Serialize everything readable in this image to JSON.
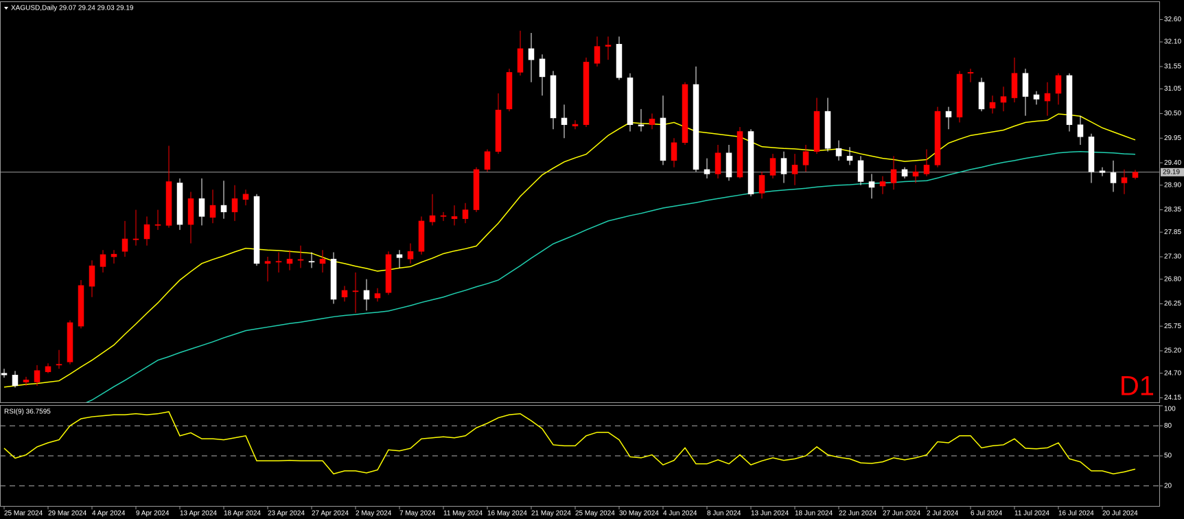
{
  "chart_data": {
    "type": "candlestick",
    "title": "XAGUSD,Daily 29.07 29.24 29.03 29.19",
    "watermark": "D1",
    "categories": [
      "25 Mar 2024",
      null,
      null,
      null,
      "29 Mar 2024",
      null,
      null,
      null,
      "4 Apr 2024",
      null,
      null,
      null,
      "9 Apr 2024",
      null,
      null,
      null,
      "13 Apr 2024",
      null,
      null,
      null,
      "18 Apr 2024",
      null,
      null,
      null,
      "23 Apr 2024",
      null,
      null,
      null,
      "27 Apr 2024",
      null,
      null,
      null,
      "2 May 2024",
      null,
      null,
      null,
      "7 May 2024",
      null,
      null,
      null,
      "11 May 2024",
      null,
      null,
      null,
      "16 May 2024",
      null,
      null,
      null,
      "21 May 2024",
      null,
      null,
      null,
      "25 May 2024",
      null,
      null,
      null,
      "30 May 2024",
      null,
      null,
      null,
      "4 Jun 2024",
      null,
      null,
      null,
      "8 Jun 2024",
      null,
      null,
      null,
      "13 Jun 2024",
      null,
      null,
      null,
      "18 Jun 2024",
      null,
      null,
      null,
      "22 Jun 2024",
      null,
      null,
      null,
      "27 Jun 2024",
      null,
      null,
      null,
      "2 Jul 2024",
      null,
      null,
      null,
      "6 Jul 2024",
      null,
      null,
      null,
      "11 Jul 2024",
      null,
      null,
      null,
      "16 Jul 2024",
      null,
      null,
      null,
      "20 Jul 2024",
      null,
      null,
      null
    ],
    "open": [
      24.7,
      24.66,
      24.5,
      24.5,
      24.73,
      24.88,
      24.95,
      25.75,
      26.64,
      27.08,
      27.3,
      27.42,
      27.68,
      27.7,
      28.0,
      28.0,
      28.95,
      28.02,
      28.6,
      28.18,
      28.45,
      28.3,
      28.58,
      28.65,
      27.15,
      27.18,
      27.15,
      27.22,
      27.2,
      27.15,
      27.25,
      26.4,
      26.52,
      26.55,
      26.38,
      26.5,
      27.35,
      27.25,
      27.42,
      28.08,
      28.2,
      28.15,
      28.15,
      28.35,
      29.25,
      29.65,
      30.6,
      31.42,
      31.95,
      31.72,
      31.35,
      30.4,
      30.22,
      30.25,
      31.62,
      32.0,
      32.05,
      31.3,
      30.25,
      30.25,
      30.4,
      29.45,
      29.85,
      31.15,
      29.25,
      29.15,
      29.62,
      29.08,
      30.1,
      28.72,
      29.12,
      29.5,
      29.15,
      29.35,
      29.65,
      30.55,
      29.72,
      29.55,
      29.45,
      28.98,
      28.88,
      28.95,
      29.25,
      29.1,
      29.15,
      29.35,
      30.55,
      30.42,
      31.4,
      31.2,
      30.62,
      30.75,
      30.85,
      31.4,
      30.92,
      30.78,
      30.95,
      31.35,
      30.25,
      29.98,
      29.22,
      29.18,
      28.95,
      29.07
    ],
    "high": [
      24.8,
      24.75,
      24.62,
      24.88,
      24.92,
      25.22,
      25.88,
      26.78,
      27.22,
      27.45,
      27.45,
      28.1,
      28.35,
      28.2,
      28.35,
      29.78,
      29.05,
      28.75,
      29.05,
      28.8,
      29.0,
      28.9,
      28.8,
      28.7,
      27.3,
      27.4,
      27.45,
      27.55,
      27.4,
      27.45,
      27.4,
      26.65,
      26.95,
      26.8,
      26.6,
      27.42,
      27.45,
      27.6,
      28.2,
      28.7,
      28.3,
      28.45,
      28.5,
      29.3,
      29.7,
      30.95,
      31.5,
      32.35,
      32.3,
      31.82,
      31.45,
      30.7,
      30.35,
      31.75,
      32.22,
      32.22,
      32.22,
      31.4,
      30.6,
      30.5,
      30.9,
      29.95,
      31.2,
      31.55,
      29.5,
      29.8,
      29.8,
      30.2,
      30.15,
      29.2,
      29.6,
      29.65,
      29.6,
      29.8,
      30.85,
      30.85,
      29.9,
      29.75,
      29.55,
      29.15,
      29.1,
      29.55,
      29.3,
      29.35,
      29.7,
      30.65,
      30.65,
      31.45,
      31.5,
      31.3,
      30.9,
      31.1,
      31.75,
      31.5,
      31.0,
      31.2,
      31.4,
      31.4,
      30.45,
      30.05,
      29.3,
      29.45,
      29.25,
      29.24
    ],
    "low": [
      24.6,
      24.38,
      24.42,
      24.42,
      24.7,
      24.8,
      24.9,
      25.7,
      26.4,
      26.95,
      27.15,
      27.3,
      27.55,
      27.55,
      27.9,
      27.95,
      27.9,
      27.6,
      28.0,
      28.05,
      28.15,
      28.1,
      28.45,
      27.1,
      26.75,
      26.95,
      27.0,
      27.05,
      27.05,
      26.95,
      26.25,
      26.3,
      26.05,
      26.1,
      26.3,
      26.45,
      27.05,
      27.15,
      27.35,
      28.0,
      28.1,
      28.0,
      28.05,
      28.3,
      29.2,
      29.6,
      30.55,
      31.35,
      31.2,
      30.9,
      30.15,
      29.95,
      30.15,
      30.2,
      31.55,
      31.7,
      31.25,
      30.1,
      30.1,
      30.15,
      29.35,
      29.3,
      29.8,
      29.2,
      29.05,
      29.05,
      29.0,
      29.05,
      28.65,
      28.6,
      29.05,
      28.95,
      28.9,
      29.2,
      29.6,
      29.65,
      29.45,
      29.35,
      28.9,
      28.6,
      28.7,
      28.8,
      29.05,
      28.95,
      29.1,
      29.3,
      30.15,
      30.3,
      31.2,
      30.55,
      30.5,
      30.55,
      30.75,
      30.45,
      30.7,
      30.45,
      30.7,
      30.1,
      29.8,
      28.95,
      29.1,
      28.75,
      28.7,
      29.03
    ],
    "close": [
      24.66,
      24.42,
      24.55,
      24.76,
      24.85,
      24.9,
      25.83,
      26.66,
      27.1,
      27.35,
      27.36,
      27.7,
      27.7,
      28.02,
      28.02,
      28.98,
      28.02,
      28.6,
      28.2,
      28.45,
      28.3,
      28.6,
      28.7,
      27.15,
      27.2,
      27.2,
      27.25,
      27.24,
      27.18,
      27.25,
      26.35,
      26.55,
      26.54,
      26.35,
      26.48,
      27.35,
      27.28,
      27.42,
      28.1,
      28.22,
      28.22,
      28.2,
      28.35,
      29.25,
      29.65,
      30.58,
      31.42,
      31.95,
      31.7,
      31.32,
      30.4,
      30.25,
      30.26,
      31.65,
      32.0,
      32.03,
      31.3,
      30.25,
      30.22,
      30.38,
      29.45,
      29.85,
      31.15,
      29.25,
      29.15,
      29.62,
      29.08,
      30.1,
      28.7,
      29.12,
      29.5,
      29.15,
      29.35,
      29.65,
      30.55,
      29.72,
      29.55,
      29.45,
      28.98,
      28.85,
      28.98,
      29.25,
      29.1,
      29.2,
      29.35,
      30.55,
      30.42,
      31.38,
      31.42,
      30.6,
      30.75,
      30.88,
      31.4,
      30.88,
      30.82,
      30.95,
      31.35,
      30.25,
      29.98,
      29.2,
      29.18,
      28.95,
      29.07,
      29.19
    ],
    "up_color": "#ff0000",
    "down_color": "#ffffff",
    "overlays": [
      {
        "color": "#ffff00",
        "values": [
          24.39,
          24.42,
          24.45,
          24.47,
          24.5,
          24.53,
          24.68,
          24.84,
          24.99,
          25.16,
          25.33,
          25.57,
          25.8,
          26.04,
          26.27,
          26.53,
          26.78,
          26.97,
          27.15,
          27.24,
          27.32,
          27.41,
          27.49,
          27.47,
          27.45,
          27.44,
          27.42,
          27.4,
          27.38,
          27.29,
          27.2,
          27.15,
          27.09,
          27.04,
          26.98,
          27.01,
          27.05,
          27.08,
          27.18,
          27.27,
          27.37,
          27.43,
          27.48,
          27.54,
          27.8,
          28.05,
          28.35,
          28.65,
          28.89,
          29.13,
          29.28,
          29.42,
          29.51,
          29.59,
          29.8,
          30.01,
          30.16,
          30.3,
          30.28,
          30.27,
          30.25,
          30.3,
          30.2,
          30.1,
          30.07,
          30.04,
          30.01,
          29.98,
          29.87,
          29.76,
          29.74,
          29.72,
          29.71,
          29.69,
          29.67,
          29.69,
          29.71,
          29.66,
          29.6,
          29.55,
          29.5,
          29.47,
          29.43,
          29.45,
          29.47,
          29.66,
          29.84,
          29.93,
          30.01,
          30.05,
          30.09,
          30.13,
          30.22,
          30.3,
          30.33,
          30.35,
          30.49,
          30.47,
          30.44,
          30.31,
          30.18,
          30.09,
          30.0,
          29.91
        ]
      },
      {
        "color": "#20d0b0",
        "values": [
          null,
          null,
          null,
          null,
          null,
          null,
          null,
          23.99,
          24.1,
          24.25,
          24.4,
          24.54,
          24.69,
          24.84,
          24.99,
          25.07,
          25.16,
          25.24,
          25.32,
          25.4,
          25.49,
          25.57,
          25.65,
          25.69,
          25.73,
          25.77,
          25.81,
          25.84,
          25.88,
          25.92,
          25.96,
          25.99,
          26.01,
          26.04,
          26.06,
          26.09,
          26.15,
          26.21,
          26.28,
          26.34,
          26.4,
          26.48,
          26.55,
          26.63,
          26.7,
          26.78,
          26.94,
          27.1,
          27.27,
          27.43,
          27.59,
          27.69,
          27.79,
          27.9,
          28.0,
          28.1,
          28.16,
          28.22,
          28.27,
          28.33,
          28.39,
          28.43,
          28.47,
          28.51,
          28.56,
          28.6,
          28.64,
          28.68,
          28.72,
          28.74,
          28.77,
          28.79,
          28.81,
          28.83,
          28.86,
          28.88,
          28.9,
          28.91,
          28.93,
          28.94,
          28.95,
          28.96,
          28.98,
          28.99,
          29.0,
          29.06,
          29.13,
          29.19,
          29.25,
          29.3,
          29.36,
          29.41,
          29.45,
          29.5,
          29.54,
          29.58,
          29.62,
          29.64,
          29.65,
          29.64,
          29.63,
          29.62,
          29.6,
          29.59
        ]
      }
    ],
    "last_price": 29.19,
    "ylim": [
      24.05,
      32.99
    ],
    "yticks": [
      {
        "value": 32.6,
        "label": "32.60"
      },
      {
        "value": 32.1,
        "label": "32.10"
      },
      31.55,
      31.05,
      {
        "value": 30.5,
        "label": "30.50"
      },
      29.95,
      {
        "value": 29.4,
        "label": "29.40"
      },
      {
        "value": 28.9,
        "label": "28.90"
      },
      28.35,
      27.85,
      {
        "value": 27.3,
        "label": "27.30"
      },
      {
        "value": 26.8,
        "label": "26.80"
      },
      26.25,
      25.75,
      {
        "value": 25.2,
        "label": "25.20"
      },
      {
        "value": 24.7,
        "label": "24.70"
      },
      24.15
    ],
    "grid": false,
    "indicator": {
      "title": "RSI(9) 36.7595",
      "color": "#ffff00",
      "ylim": [
        0,
        100
      ],
      "yticks": [
        100,
        80,
        50,
        20
      ],
      "values": [
        57.6,
        47.7,
        51,
        59,
        63,
        66,
        80,
        87,
        89,
        90,
        91,
        91,
        92,
        91,
        92,
        94,
        70,
        73,
        67,
        67,
        66,
        68,
        70,
        45,
        45,
        45,
        45.5,
        45,
        45,
        45,
        32,
        35,
        35,
        33,
        36,
        56,
        55,
        57.5,
        67,
        68,
        69,
        68,
        70,
        78,
        82.5,
        88,
        91,
        92,
        85,
        77,
        61,
        60,
        60,
        70,
        73.5,
        73.5,
        66,
        49,
        48,
        51,
        41,
        45.5,
        58,
        42,
        42,
        46,
        42,
        51,
        41,
        45,
        48,
        45.5,
        47,
        50,
        59,
        51,
        48.5,
        47,
        43,
        42.5,
        44,
        48,
        46,
        48,
        51,
        64,
        63,
        70,
        70,
        58,
        60,
        61,
        67,
        57.5,
        57,
        58,
        63,
        47,
        44,
        35,
        35,
        32,
        34,
        36.7595
      ]
    }
  }
}
